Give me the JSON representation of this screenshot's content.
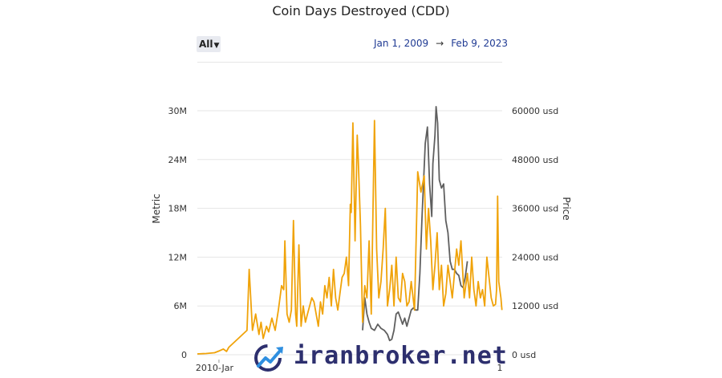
{
  "header": {
    "range_button": "All",
    "date_from": "Jan 1, 2009",
    "date_arrow": "→",
    "date_to": "Feb 9, 2023"
  },
  "watermark": {
    "text": "iranbroker.net",
    "logo": "chart-trend-icon"
  },
  "chart_data": {
    "type": "line",
    "title": "Coin Days Destroyed (CDD)",
    "ylabel": "Metric",
    "y2label": "Price",
    "ylim": [
      0,
      30000000
    ],
    "y2lim": [
      0,
      60000
    ],
    "yticks": [
      "0",
      "6M",
      "12M",
      "18M",
      "24M",
      "30M"
    ],
    "y2ticks": [
      "0 usd",
      "12000 usd",
      "24000 usd",
      "36000 usd",
      "48000 usd",
      "60000 usd"
    ],
    "xtick_labels": [
      {
        "label": "2010-Jar",
        "x": 2010.0
      },
      {
        "label": "1",
        "x": 2023.0
      }
    ],
    "xlim": [
      2009.0,
      2023.11
    ],
    "grid": true,
    "series": [
      {
        "axis": "left",
        "color": "#f0a30a",
        "points": [
          [
            2009.0,
            100000
          ],
          [
            2009.4,
            150000
          ],
          [
            2009.8,
            250000
          ],
          [
            2010.0,
            450000
          ],
          [
            2010.2,
            700000
          ],
          [
            2010.35,
            400000
          ],
          [
            2010.45,
            900000
          ],
          [
            2011.3,
            3000000
          ],
          [
            2011.4,
            10500000
          ],
          [
            2011.55,
            3000000
          ],
          [
            2011.7,
            5000000
          ],
          [
            2011.85,
            2500000
          ],
          [
            2011.95,
            4000000
          ],
          [
            2012.05,
            2000000
          ],
          [
            2012.2,
            3500000
          ],
          [
            2012.3,
            2800000
          ],
          [
            2012.45,
            4500000
          ],
          [
            2012.6,
            3000000
          ],
          [
            2012.75,
            5500000
          ],
          [
            2012.9,
            8500000
          ],
          [
            2013.0,
            8000000
          ],
          [
            2013.05,
            14000000
          ],
          [
            2013.15,
            5000000
          ],
          [
            2013.25,
            4000000
          ],
          [
            2013.35,
            5500000
          ],
          [
            2013.45,
            16500000
          ],
          [
            2013.55,
            5000000
          ],
          [
            2013.6,
            3500000
          ],
          [
            2013.7,
            13500000
          ],
          [
            2013.8,
            3500000
          ],
          [
            2013.9,
            6000000
          ],
          [
            2014.0,
            4000000
          ],
          [
            2014.1,
            5000000
          ],
          [
            2014.2,
            6000000
          ],
          [
            2014.3,
            7000000
          ],
          [
            2014.4,
            6500000
          ],
          [
            2014.5,
            5000000
          ],
          [
            2014.6,
            3500000
          ],
          [
            2014.7,
            6500000
          ],
          [
            2014.8,
            5000000
          ],
          [
            2014.9,
            8500000
          ],
          [
            2015.0,
            7000000
          ],
          [
            2015.1,
            9500000
          ],
          [
            2015.2,
            6000000
          ],
          [
            2015.3,
            10500000
          ],
          [
            2015.4,
            7000000
          ],
          [
            2015.5,
            5500000
          ],
          [
            2015.6,
            7500000
          ],
          [
            2015.7,
            9500000
          ],
          [
            2015.8,
            10000000
          ],
          [
            2015.9,
            12000000
          ],
          [
            2016.0,
            8500000
          ],
          [
            2016.08,
            18500000
          ],
          [
            2016.12,
            17500000
          ],
          [
            2016.2,
            28500000
          ],
          [
            2016.3,
            14000000
          ],
          [
            2016.4,
            27000000
          ],
          [
            2016.45,
            24000000
          ],
          [
            2016.55,
            16000000
          ],
          [
            2016.65,
            4000000
          ],
          [
            2016.75,
            8500000
          ],
          [
            2016.85,
            7000000
          ],
          [
            2016.95,
            14000000
          ],
          [
            2017.05,
            5000000
          ],
          [
            2017.2,
            28800000
          ],
          [
            2017.3,
            13000000
          ],
          [
            2017.4,
            7000000
          ],
          [
            2017.5,
            9000000
          ],
          [
            2017.6,
            13000000
          ],
          [
            2017.7,
            18000000
          ],
          [
            2017.8,
            6000000
          ],
          [
            2017.9,
            8000000
          ],
          [
            2018.0,
            11000000
          ],
          [
            2018.1,
            6000000
          ],
          [
            2018.2,
            12000000
          ],
          [
            2018.3,
            7000000
          ],
          [
            2018.4,
            6500000
          ],
          [
            2018.5,
            10000000
          ],
          [
            2018.6,
            9000000
          ],
          [
            2018.7,
            6000000
          ],
          [
            2018.8,
            6500000
          ],
          [
            2018.9,
            9000000
          ],
          [
            2019.05,
            5500000
          ],
          [
            2019.2,
            22500000
          ],
          [
            2019.35,
            20000000
          ],
          [
            2019.5,
            22000000
          ],
          [
            2019.6,
            13000000
          ],
          [
            2019.7,
            18000000
          ],
          [
            2019.8,
            14000000
          ],
          [
            2019.9,
            8000000
          ],
          [
            2020.0,
            11000000
          ],
          [
            2020.1,
            15000000
          ],
          [
            2020.2,
            8000000
          ],
          [
            2020.3,
            11000000
          ],
          [
            2020.4,
            6000000
          ],
          [
            2020.5,
            7500000
          ],
          [
            2020.6,
            11000000
          ],
          [
            2020.7,
            9000000
          ],
          [
            2020.8,
            7000000
          ],
          [
            2020.9,
            10000000
          ],
          [
            2021.0,
            13000000
          ],
          [
            2021.1,
            11000000
          ],
          [
            2021.2,
            14000000
          ],
          [
            2021.35,
            7000000
          ],
          [
            2021.5,
            10000000
          ],
          [
            2021.6,
            7000000
          ],
          [
            2021.7,
            12000000
          ],
          [
            2021.8,
            8000000
          ],
          [
            2021.9,
            6000000
          ],
          [
            2022.0,
            9000000
          ],
          [
            2022.1,
            7000000
          ],
          [
            2022.2,
            8000000
          ],
          [
            2022.3,
            6000000
          ],
          [
            2022.4,
            12000000
          ],
          [
            2022.5,
            9500000
          ],
          [
            2022.6,
            7000000
          ],
          [
            2022.7,
            6000000
          ],
          [
            2022.8,
            6200000
          ],
          [
            2022.85,
            8000000
          ],
          [
            2022.9,
            19500000
          ],
          [
            2022.95,
            9000000
          ],
          [
            2023.05,
            7000000
          ],
          [
            2023.1,
            5500000
          ]
        ]
      },
      {
        "axis": "right",
        "color": "#5f5f5f",
        "points": [
          [
            2016.65,
            6000
          ],
          [
            2016.75,
            14000
          ],
          [
            2016.85,
            10000
          ],
          [
            2016.95,
            8000
          ],
          [
            2017.05,
            6500
          ],
          [
            2017.2,
            6000
          ],
          [
            2017.35,
            7500
          ],
          [
            2017.5,
            6500
          ],
          [
            2017.65,
            6000
          ],
          [
            2017.8,
            5000
          ],
          [
            2017.9,
            3500
          ],
          [
            2018.0,
            3800
          ],
          [
            2018.1,
            6000
          ],
          [
            2018.2,
            10000
          ],
          [
            2018.3,
            10500
          ],
          [
            2018.4,
            9000
          ],
          [
            2018.5,
            7500
          ],
          [
            2018.6,
            9000
          ],
          [
            2018.7,
            7000
          ],
          [
            2018.8,
            9000
          ],
          [
            2018.9,
            11000
          ],
          [
            2019.0,
            11500
          ],
          [
            2019.1,
            11000
          ],
          [
            2019.2,
            11000
          ],
          [
            2019.3,
            20000
          ],
          [
            2019.4,
            34000
          ],
          [
            2019.55,
            52000
          ],
          [
            2019.65,
            56000
          ],
          [
            2019.75,
            42000
          ],
          [
            2019.85,
            34000
          ],
          [
            2019.9,
            47000
          ],
          [
            2020.0,
            54000
          ],
          [
            2020.05,
            61000
          ],
          [
            2020.12,
            57000
          ],
          [
            2020.2,
            43000
          ],
          [
            2020.3,
            41000
          ],
          [
            2020.4,
            42000
          ],
          [
            2020.5,
            33000
          ],
          [
            2020.6,
            30000
          ],
          [
            2020.7,
            23000
          ],
          [
            2020.8,
            21000
          ],
          [
            2020.9,
            21000
          ],
          [
            2021.0,
            20000
          ],
          [
            2021.1,
            19500
          ],
          [
            2021.2,
            17000
          ],
          [
            2021.3,
            16500
          ],
          [
            2021.4,
            19000
          ],
          [
            2021.5,
            23000
          ]
        ]
      }
    ]
  }
}
